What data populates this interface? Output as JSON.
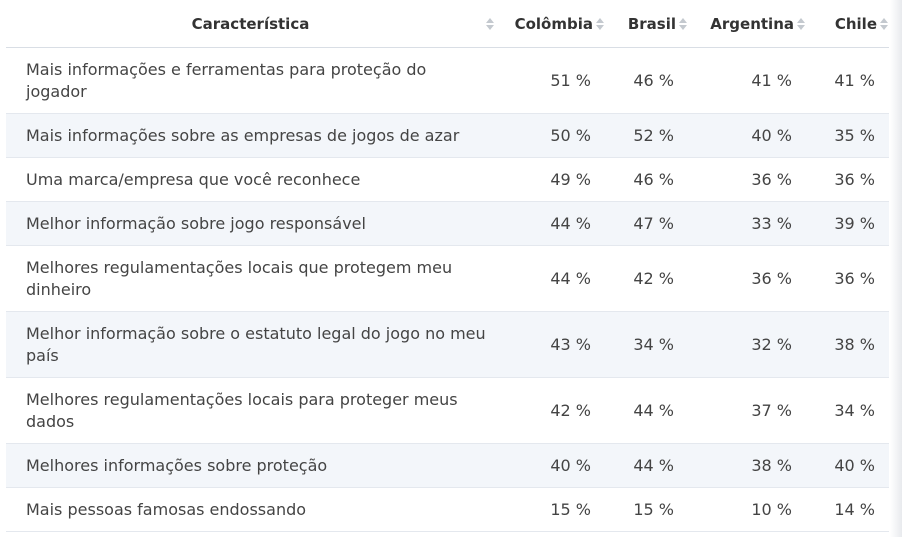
{
  "chart_data": {
    "type": "table",
    "columns": [
      "Característica",
      "Colômbia",
      "Brasil",
      "Argentina",
      "Chile"
    ],
    "rows": [
      {
        "label": "Mais informações e ferramentas para proteção do jogador",
        "values": [
          "51 %",
          "46 %",
          "41 %",
          "41 %"
        ]
      },
      {
        "label": "Mais informações sobre as empresas de jogos de azar",
        "values": [
          "50 %",
          "52 %",
          "40 %",
          "35 %"
        ]
      },
      {
        "label": "Uma marca/empresa que você reconhece",
        "values": [
          "49 %",
          "46 %",
          "36 %",
          "36 %"
        ]
      },
      {
        "label": "Melhor informação sobre jogo responsável",
        "values": [
          "44 %",
          "47 %",
          "33 %",
          "39 %"
        ]
      },
      {
        "label": "Melhores regulamentações locais que protegem meu dinheiro",
        "values": [
          "44 %",
          "42 %",
          "36 %",
          "36 %"
        ]
      },
      {
        "label": "Melhor informação sobre o estatuto legal do jogo no meu país",
        "values": [
          "43 %",
          "34 %",
          "32 %",
          "38 %"
        ]
      },
      {
        "label": "Melhores regulamentações locais para proteger meus dados",
        "values": [
          "42 %",
          "44 %",
          "37 %",
          "34 %"
        ]
      },
      {
        "label": "Melhores informações sobre proteção",
        "values": [
          "40 %",
          "44 %",
          "38 %",
          "40 %"
        ]
      },
      {
        "label": "Mais pessoas famosas endossando",
        "values": [
          "15 %",
          "15 %",
          "10 %",
          "14 %"
        ]
      }
    ]
  },
  "icons": {
    "sort": "sort-arrows-icon"
  },
  "colors": {
    "stripe": "#f3f6fa",
    "border": "#e4e8ee",
    "sort": "#c4c9cf"
  }
}
